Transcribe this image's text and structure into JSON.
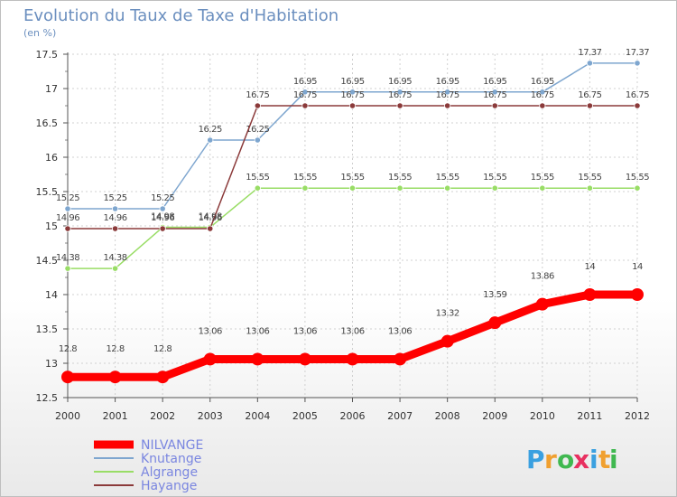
{
  "chart_data": {
    "type": "line",
    "title": "Evolution du Taux de Taxe d'Habitation",
    "subtitle": "(en %)",
    "x": [
      2000,
      2001,
      2002,
      2003,
      2004,
      2005,
      2006,
      2007,
      2008,
      2009,
      2010,
      2011,
      2012
    ],
    "ylim": [
      12.5,
      17.5
    ],
    "yticks": [
      12.5,
      13,
      13.5,
      14,
      14.5,
      15,
      15.5,
      16,
      16.5,
      17,
      17.5
    ],
    "grid": true,
    "legend_position": "bottom-left",
    "series": [
      {
        "name": "NILVANGE",
        "color": "#ff0000",
        "values": [
          12.8,
          12.8,
          12.8,
          13.06,
          13.06,
          13.06,
          13.06,
          13.06,
          13.32,
          13.59,
          13.86,
          14,
          14
        ]
      },
      {
        "name": "Knutange",
        "color": "#7ea6cf",
        "values": [
          15.25,
          15.25,
          15.25,
          16.25,
          16.25,
          16.95,
          16.95,
          16.95,
          16.95,
          16.95,
          16.95,
          17.37,
          17.37
        ]
      },
      {
        "name": "Algrange",
        "color": "#99dd66",
        "values": [
          14.38,
          14.38,
          14.98,
          14.98,
          15.55,
          15.55,
          15.55,
          15.55,
          15.55,
          15.55,
          15.55,
          15.55,
          15.55
        ]
      },
      {
        "name": "Hayange",
        "color": "#8b3a3a",
        "values": [
          14.96,
          14.96,
          14.96,
          14.96,
          16.75,
          16.75,
          16.75,
          16.75,
          16.75,
          16.75,
          16.75,
          16.75,
          16.75
        ]
      }
    ]
  },
  "logo": {
    "letters": [
      "P",
      "r",
      "o",
      "x",
      "i",
      "t",
      "i"
    ],
    "colors": [
      "#3aa0e0",
      "#f0a030",
      "#40b850",
      "#e83060",
      "#3aa0e0",
      "#f0a030",
      "#40b850"
    ]
  }
}
